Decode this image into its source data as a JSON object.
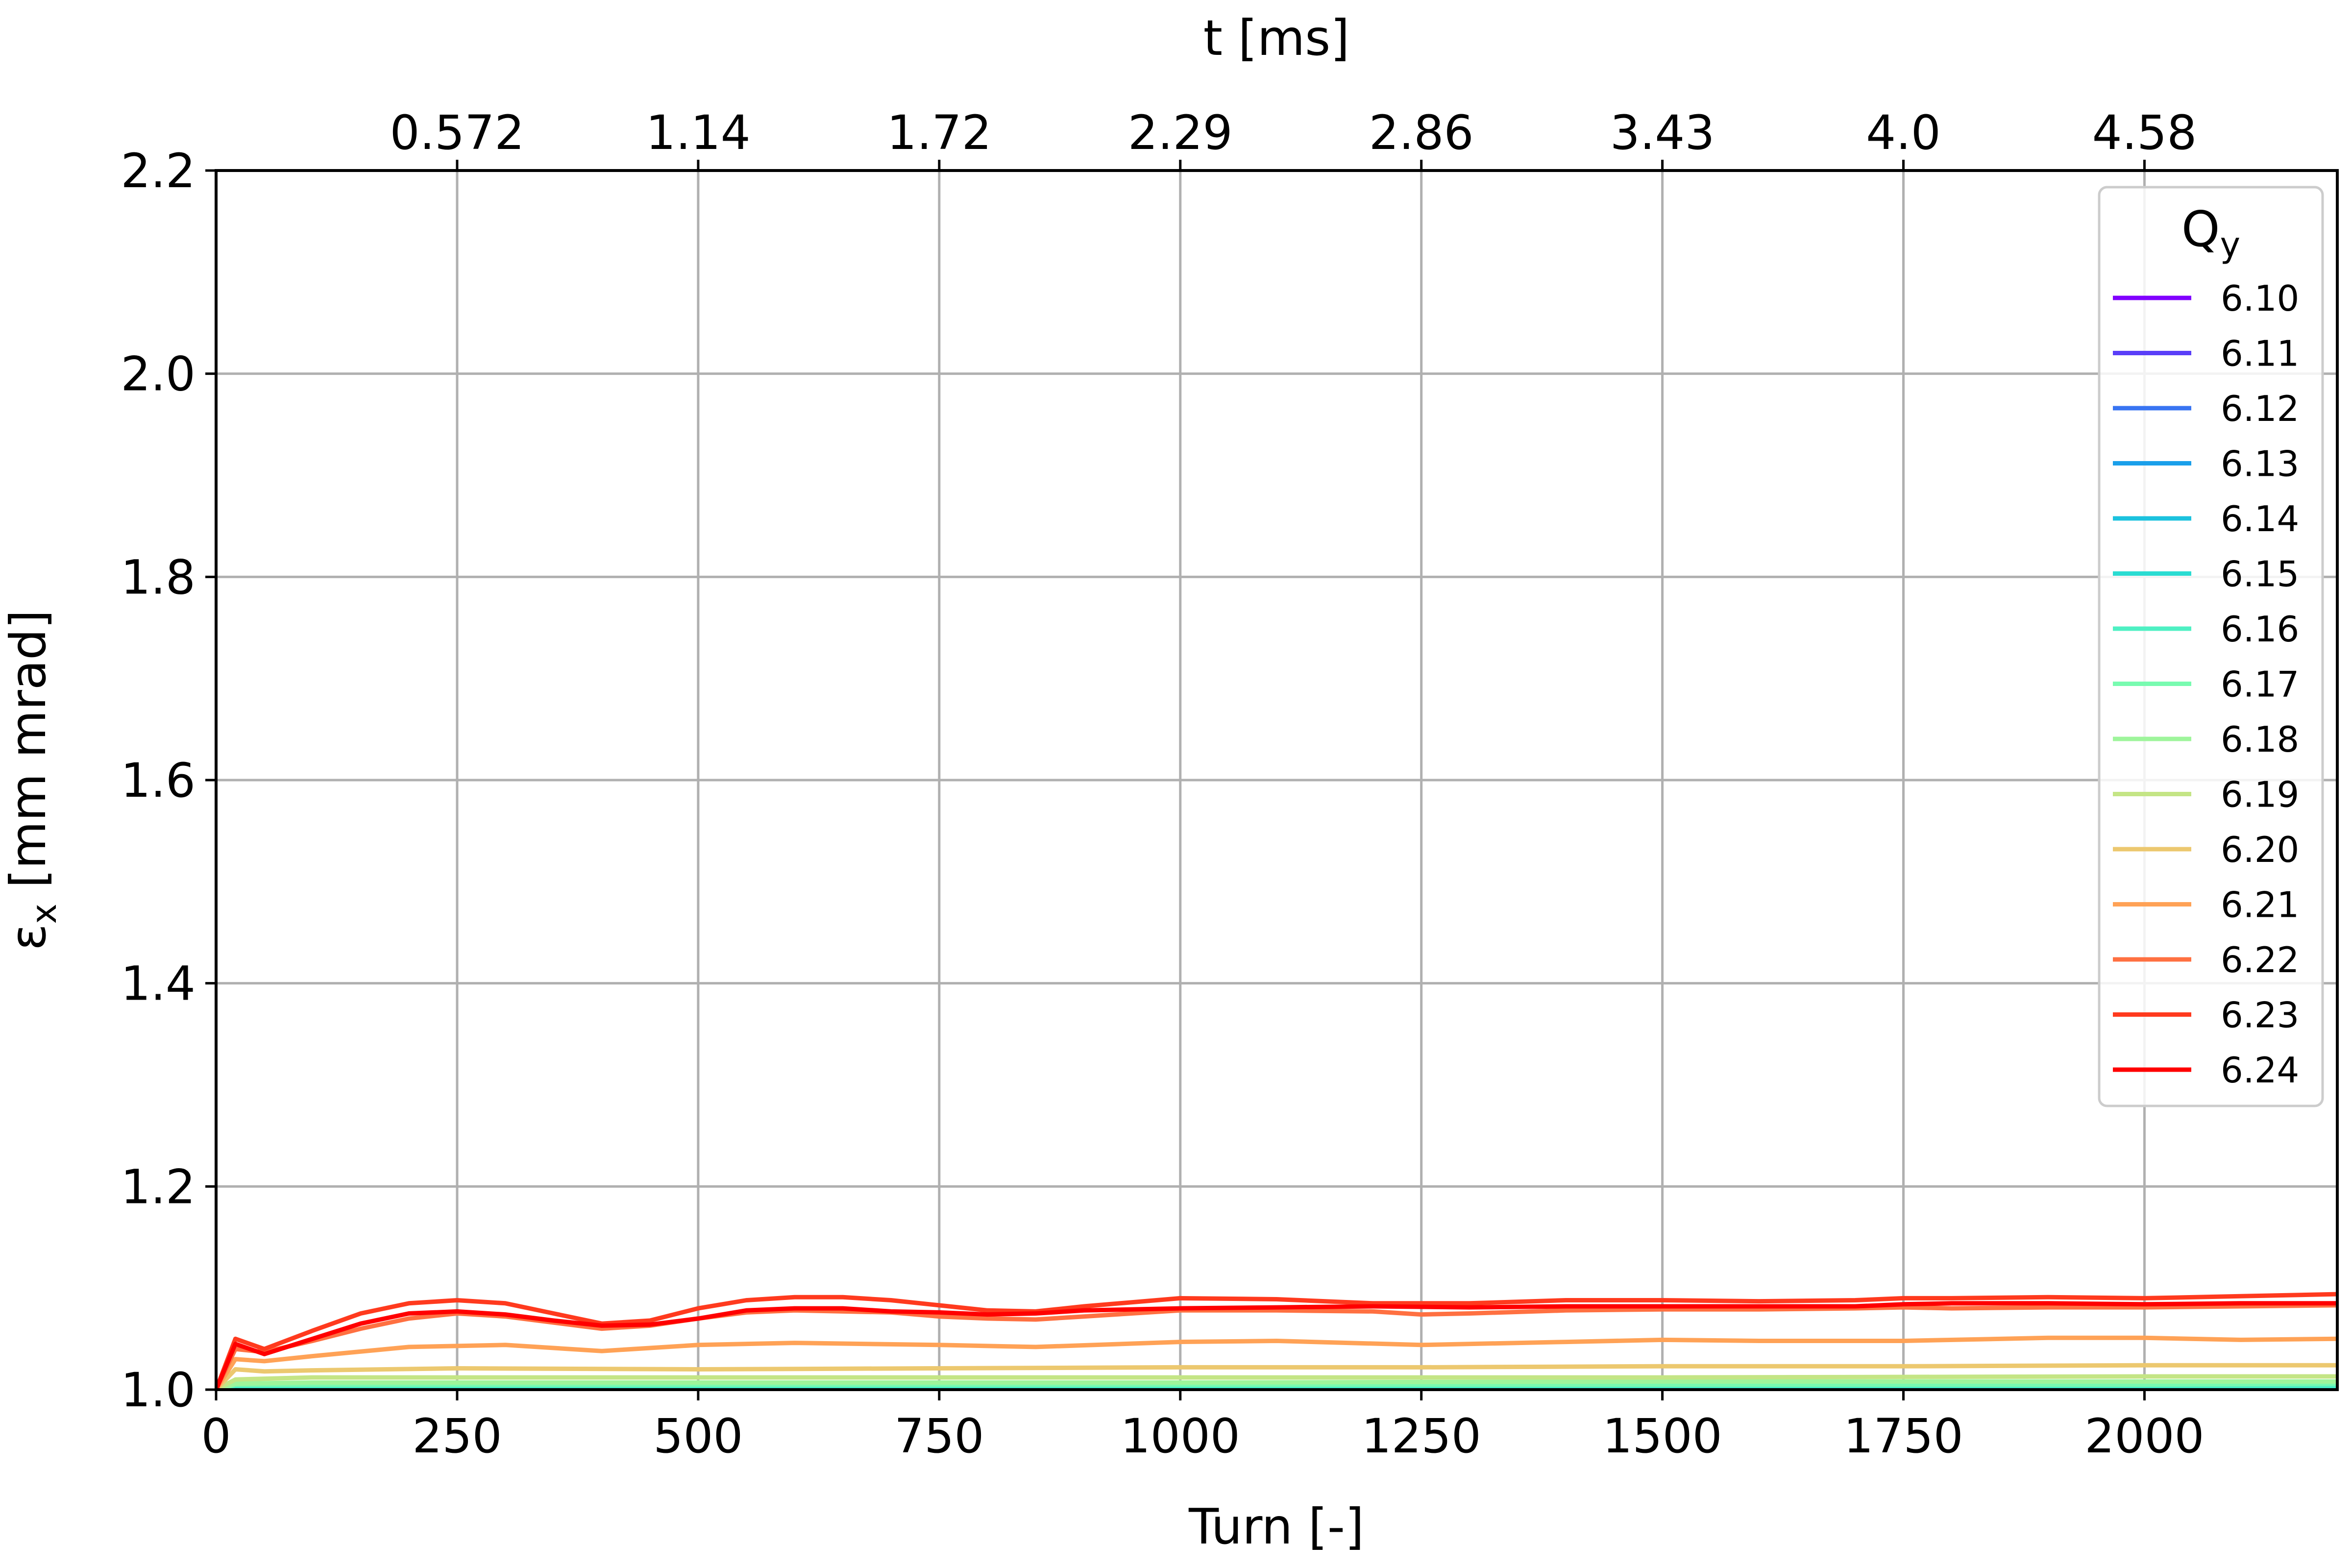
{
  "chart_data": {
    "type": "line",
    "xlabel": "Turn [-]",
    "ylabel": "εx [mm mrad]",
    "ylabel_main": "ε",
    "ylabel_sub": "x",
    "ylabel_rest": " [mm mrad]",
    "top_xlabel": "t [ms]",
    "xlim": [
      0,
      2200
    ],
    "ylim": [
      1.0,
      2.2
    ],
    "grid": true,
    "xticks": [
      0,
      250,
      500,
      750,
      1000,
      1250,
      1500,
      1750,
      2000
    ],
    "xtick_labels": [
      "0",
      "250",
      "500",
      "750",
      "1000",
      "1250",
      "1500",
      "1750",
      "2000"
    ],
    "yticks": [
      1.0,
      1.2,
      1.4,
      1.6,
      1.8,
      2.0,
      2.2
    ],
    "ytick_labels": [
      "1.0",
      "1.2",
      "1.4",
      "1.6",
      "1.8",
      "2.0",
      "2.2"
    ],
    "top_xticks": [
      250,
      500,
      750,
      1000,
      1250,
      1500,
      1750,
      2000
    ],
    "top_xtick_labels": [
      "0.572",
      "1.14",
      "1.72",
      "2.29",
      "2.86",
      "3.43",
      "4.0",
      "4.58"
    ],
    "legend": {
      "title": "Qy",
      "title_main": "Q",
      "title_sub": "y",
      "placement": "top-right"
    },
    "series": [
      {
        "name": "6.10",
        "color": "#8000ff",
        "x": [
          0,
          20,
          100,
          500,
          1000,
          1500,
          2000,
          2200
        ],
        "y": [
          1.0,
          1.0,
          1.0,
          1.0,
          1.0,
          1.0,
          1.0,
          1.0
        ]
      },
      {
        "name": "6.11",
        "color": "#5a3ef8",
        "x": [
          0,
          20,
          100,
          500,
          1000,
          1500,
          2000,
          2200
        ],
        "y": [
          1.0,
          1.0,
          1.0,
          1.0,
          1.0,
          1.0,
          1.0,
          1.0
        ]
      },
      {
        "name": "6.12",
        "color": "#3874f2",
        "x": [
          0,
          20,
          100,
          500,
          1000,
          1500,
          2000,
          2200
        ],
        "y": [
          1.0,
          1.0,
          1.0,
          1.0,
          1.0,
          1.0,
          1.0,
          1.0
        ]
      },
      {
        "name": "6.13",
        "color": "#1a9fea",
        "x": [
          0,
          20,
          100,
          500,
          1000,
          1500,
          2000,
          2200
        ],
        "y": [
          1.0,
          1.001,
          1.001,
          1.001,
          1.001,
          1.001,
          1.001,
          1.001
        ]
      },
      {
        "name": "6.14",
        "color": "#1bc2de",
        "x": [
          0,
          20,
          100,
          500,
          1000,
          1500,
          2000,
          2200
        ],
        "y": [
          1.0,
          1.002,
          1.002,
          1.002,
          1.002,
          1.002,
          1.002,
          1.002
        ]
      },
      {
        "name": "6.15",
        "color": "#2adcd2",
        "x": [
          0,
          20,
          100,
          500,
          1000,
          1500,
          2000,
          2200
        ],
        "y": [
          1.0,
          1.003,
          1.003,
          1.003,
          1.003,
          1.003,
          1.003,
          1.003
        ]
      },
      {
        "name": "6.16",
        "color": "#4ef0c3",
        "x": [
          0,
          20,
          100,
          500,
          1000,
          1500,
          2000,
          2200
        ],
        "y": [
          1.0,
          1.004,
          1.004,
          1.004,
          1.004,
          1.004,
          1.004,
          1.004
        ]
      },
      {
        "name": "6.17",
        "color": "#78fbb0",
        "x": [
          0,
          20,
          100,
          500,
          1000,
          1500,
          2000,
          2200
        ],
        "y": [
          1.0,
          1.005,
          1.005,
          1.005,
          1.005,
          1.005,
          1.005,
          1.006
        ]
      },
      {
        "name": "6.18",
        "color": "#9ef59b",
        "x": [
          0,
          20,
          100,
          500,
          1000,
          1500,
          2000,
          2200
        ],
        "y": [
          1.0,
          1.006,
          1.007,
          1.007,
          1.007,
          1.008,
          1.008,
          1.008
        ]
      },
      {
        "name": "6.19",
        "color": "#c4e585",
        "x": [
          0,
          20,
          100,
          500,
          1000,
          1500,
          2000,
          2200
        ],
        "y": [
          1.0,
          1.01,
          1.012,
          1.012,
          1.012,
          1.012,
          1.013,
          1.013
        ]
      },
      {
        "name": "6.20",
        "color": "#ecc86f",
        "x": [
          0,
          20,
          50,
          100,
          250,
          500,
          750,
          1000,
          1250,
          1500,
          1750,
          2000,
          2200
        ],
        "y": [
          1.0,
          1.02,
          1.018,
          1.019,
          1.021,
          1.02,
          1.021,
          1.022,
          1.022,
          1.023,
          1.023,
          1.024,
          1.024
        ]
      },
      {
        "name": "6.21",
        "color": "#ffa256",
        "x": [
          0,
          20,
          50,
          100,
          200,
          300,
          400,
          500,
          600,
          750,
          850,
          1000,
          1100,
          1250,
          1400,
          1500,
          1600,
          1750,
          1900,
          2000,
          2100,
          2200
        ],
        "y": [
          1.0,
          1.03,
          1.028,
          1.033,
          1.042,
          1.044,
          1.038,
          1.044,
          1.046,
          1.044,
          1.042,
          1.047,
          1.048,
          1.044,
          1.047,
          1.049,
          1.048,
          1.048,
          1.051,
          1.051,
          1.049,
          1.05
        ]
      },
      {
        "name": "6.22",
        "color": "#ff7041",
        "x": [
          0,
          20,
          50,
          100,
          150,
          200,
          250,
          300,
          350,
          400,
          450,
          500,
          550,
          600,
          700,
          750,
          800,
          850,
          900,
          1000,
          1100,
          1200,
          1250,
          1300,
          1400,
          1500,
          1600,
          1700,
          1750,
          1800,
          1900,
          2000,
          2100,
          2200
        ],
        "y": [
          1.0,
          1.04,
          1.037,
          1.048,
          1.06,
          1.07,
          1.075,
          1.072,
          1.066,
          1.06,
          1.063,
          1.07,
          1.076,
          1.078,
          1.076,
          1.072,
          1.07,
          1.069,
          1.072,
          1.078,
          1.078,
          1.077,
          1.074,
          1.075,
          1.078,
          1.079,
          1.079,
          1.08,
          1.081,
          1.08,
          1.081,
          1.081,
          1.082,
          1.083
        ]
      },
      {
        "name": "6.23",
        "color": "#ff3a1e",
        "x": [
          0,
          20,
          50,
          100,
          150,
          200,
          250,
          300,
          350,
          400,
          450,
          500,
          550,
          600,
          650,
          700,
          750,
          800,
          850,
          900,
          1000,
          1100,
          1200,
          1300,
          1400,
          1500,
          1600,
          1700,
          1750,
          1800,
          1900,
          2000,
          2100,
          2200
        ],
        "y": [
          1.0,
          1.05,
          1.04,
          1.058,
          1.075,
          1.085,
          1.088,
          1.085,
          1.075,
          1.065,
          1.068,
          1.08,
          1.088,
          1.091,
          1.091,
          1.088,
          1.083,
          1.078,
          1.077,
          1.082,
          1.09,
          1.089,
          1.085,
          1.085,
          1.088,
          1.088,
          1.087,
          1.088,
          1.09,
          1.09,
          1.091,
          1.09,
          1.092,
          1.094
        ]
      },
      {
        "name": "6.24",
        "color": "#ff0000",
        "x": [
          0,
          20,
          50,
          100,
          150,
          200,
          250,
          300,
          350,
          400,
          450,
          500,
          550,
          600,
          650,
          700,
          750,
          800,
          850,
          900,
          1000,
          1100,
          1200,
          1300,
          1400,
          1500,
          1600,
          1700,
          1750,
          1800,
          1900,
          2000,
          2100,
          2200
        ],
        "y": [
          1.0,
          1.045,
          1.035,
          1.05,
          1.065,
          1.075,
          1.077,
          1.074,
          1.068,
          1.063,
          1.064,
          1.07,
          1.078,
          1.08,
          1.08,
          1.077,
          1.076,
          1.074,
          1.075,
          1.078,
          1.08,
          1.081,
          1.082,
          1.081,
          1.082,
          1.082,
          1.082,
          1.082,
          1.084,
          1.085,
          1.085,
          1.084,
          1.085,
          1.085
        ]
      }
    ]
  }
}
